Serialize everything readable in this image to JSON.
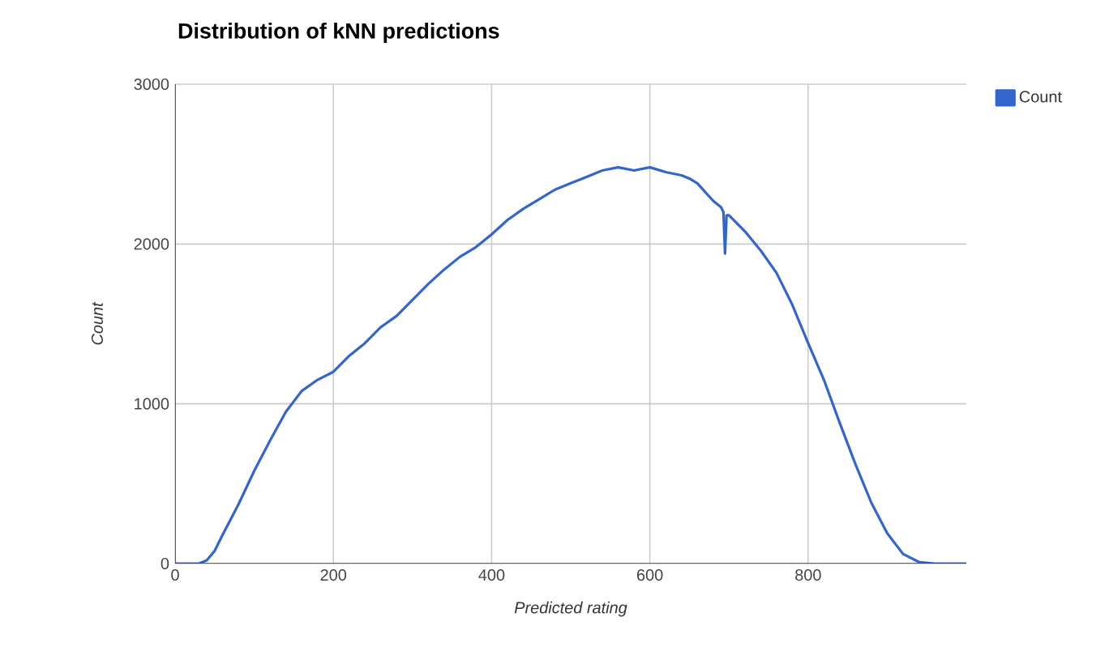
{
  "chart_data": {
    "type": "line",
    "title": "Distribution of kNN predictions",
    "xlabel": "Predicted rating",
    "ylabel": "Count",
    "x": [
      0,
      30,
      40,
      50,
      60,
      80,
      100,
      120,
      140,
      160,
      180,
      200,
      220,
      240,
      260,
      280,
      300,
      320,
      340,
      360,
      380,
      400,
      420,
      440,
      460,
      480,
      500,
      520,
      540,
      560,
      580,
      600,
      620,
      640,
      650,
      660,
      680,
      690,
      693,
      695,
      697,
      700,
      720,
      740,
      760,
      780,
      800,
      820,
      840,
      860,
      880,
      900,
      920,
      940,
      960,
      1000
    ],
    "series": [
      {
        "name": "Count",
        "color": "#3366cc",
        "values": [
          0,
          0,
          20,
          80,
          180,
          370,
          580,
          770,
          950,
          1080,
          1150,
          1200,
          1300,
          1380,
          1480,
          1550,
          1650,
          1750,
          1840,
          1920,
          1980,
          2060,
          2150,
          2220,
          2280,
          2340,
          2380,
          2420,
          2460,
          2480,
          2460,
          2480,
          2450,
          2430,
          2410,
          2380,
          2270,
          2230,
          2200,
          1940,
          2180,
          2180,
          2080,
          1960,
          1820,
          1620,
          1380,
          1150,
          880,
          620,
          380,
          190,
          60,
          10,
          0,
          0
        ]
      }
    ],
    "xlim": [
      0,
      1000
    ],
    "xticks": [
      0,
      200,
      400,
      600,
      800
    ],
    "ylim": [
      0,
      3000
    ],
    "yticks": [
      0,
      1000,
      2000,
      3000
    ],
    "grid": true,
    "legend": "top right"
  }
}
